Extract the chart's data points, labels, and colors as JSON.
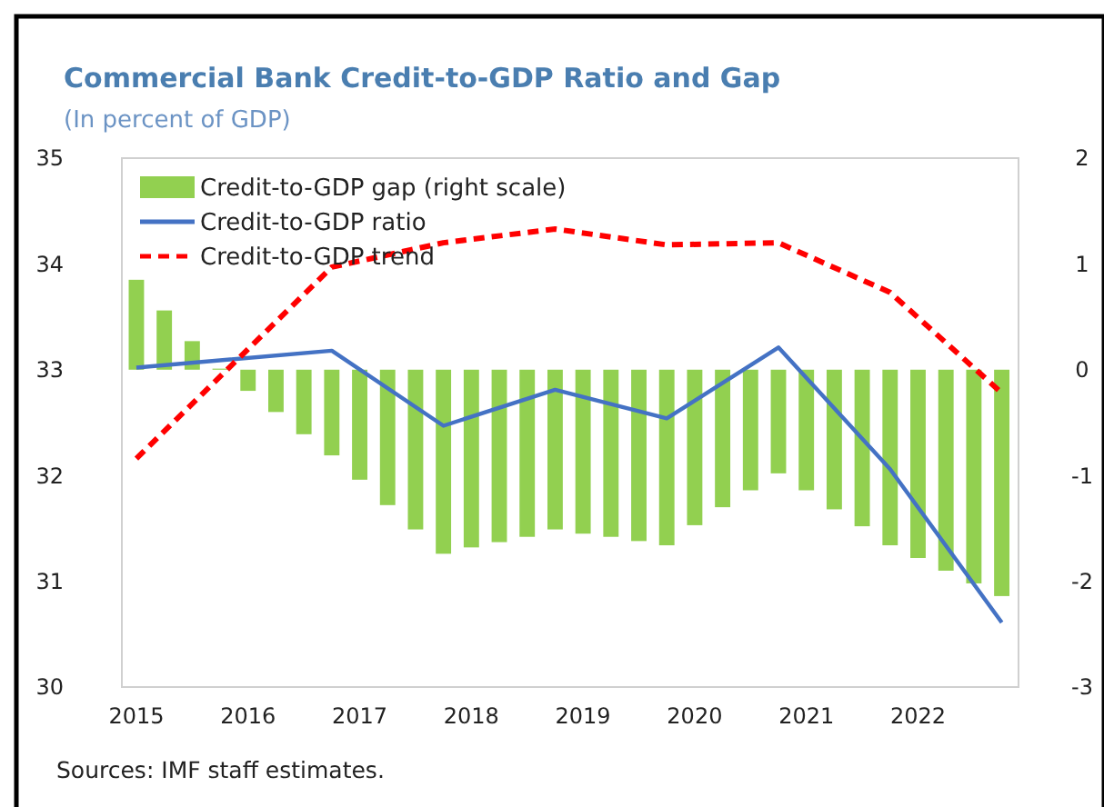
{
  "chart_data": {
    "type": "bar",
    "title": "Commercial Bank Credit-to-GDP Ratio and Gap",
    "subtitle": "(In percent of GDP)",
    "xlim": [
      2014.87,
      2022.9
    ],
    "xticks": [
      2015,
      2016,
      2017,
      2018,
      2019,
      2020,
      2021,
      2022
    ],
    "ylim": [
      30,
      35
    ],
    "yticks": [
      30,
      31,
      32,
      33,
      34,
      35
    ],
    "y2lim": [
      -3,
      2
    ],
    "y2ticks": [
      -3,
      -2,
      -1,
      0,
      1,
      2
    ],
    "legend": "top left",
    "grid": false,
    "series": [
      {
        "name": "Credit-to-GDP gap (right scale)",
        "axis": "y2",
        "color": "#92d050",
        "x": [
          2015,
          2015.25,
          2015.5,
          2015.75,
          2016,
          2016.25,
          2016.5,
          2016.75,
          2017,
          2017.25,
          2017.5,
          2017.75,
          2018,
          2018.25,
          2018.5,
          2018.75,
          2019,
          2019.25,
          2019.5,
          2019.75,
          2020,
          2020.25,
          2020.5,
          2020.75,
          2021,
          2021.25,
          2021.5,
          2021.75,
          2022,
          2022.25,
          2022.5,
          2022.75
        ],
        "values": [
          0.85,
          0.56,
          0.27,
          0.01,
          -0.2,
          -0.4,
          -0.61,
          -0.81,
          -1.04,
          -1.28,
          -1.51,
          -1.74,
          -1.68,
          -1.63,
          -1.58,
          -1.51,
          -1.55,
          -1.58,
          -1.62,
          -1.66,
          -1.47,
          -1.3,
          -1.14,
          -0.98,
          -1.14,
          -1.32,
          -1.48,
          -1.66,
          -1.78,
          -1.9,
          -2.02,
          -2.14
        ]
      },
      {
        "name": "Credit-to-GDP ratio",
        "type": "line",
        "color": "#4472c4",
        "line_style": "solid",
        "x": [
          2015,
          2016.75,
          2017.75,
          2018.75,
          2019.75,
          2020.75,
          2021.75,
          2022.75
        ],
        "values": [
          33.02,
          33.18,
          32.47,
          32.81,
          32.54,
          33.21,
          32.06,
          30.61
        ]
      },
      {
        "name": "Credit-to-GDP trend",
        "type": "line",
        "color": "#ff0000",
        "line_style": "dashed",
        "x": [
          2015,
          2016.75,
          2017.75,
          2018.75,
          2019.75,
          2020.75,
          2021.75,
          2022.75
        ],
        "values": [
          32.16,
          33.97,
          34.2,
          34.33,
          34.18,
          34.2,
          33.73,
          32.78
        ]
      }
    ],
    "annotations": [
      "Sources: IMF staff estimates."
    ]
  }
}
